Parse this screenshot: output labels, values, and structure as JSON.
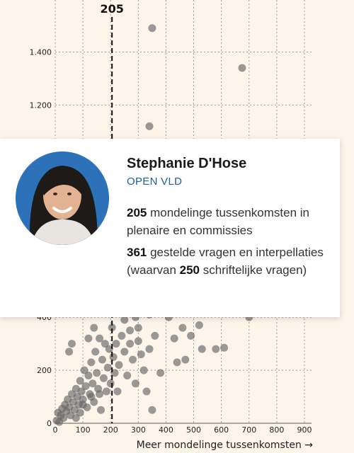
{
  "chart_data": {
    "type": "scatter",
    "xlabel": "Meer mondelinge tussenkomsten →",
    "ylabel": "",
    "xlim": [
      0,
      900
    ],
    "ylim": [
      0,
      1500
    ],
    "x_ticks": [
      "0",
      "100",
      "200",
      "300",
      "400",
      "500",
      "600",
      "700",
      "800",
      "900"
    ],
    "y_ticks": [
      {
        "value": 0,
        "label": "0"
      },
      {
        "value": 200,
        "label": "200"
      },
      {
        "value": 400,
        "label": "400"
      },
      {
        "value": 1200,
        "label": "1.200"
      },
      {
        "value": 1400,
        "label": "1.400"
      }
    ],
    "grid": true,
    "marker": {
      "x": 205,
      "label": "205"
    },
    "point_color": "#666666",
    "points": [
      [
        350,
        1490
      ],
      [
        675,
        1340
      ],
      [
        340,
        1120
      ],
      [
        240,
        420
      ],
      [
        290,
        400
      ],
      [
        340,
        410
      ],
      [
        700,
        400
      ],
      [
        5,
        10
      ],
      [
        10,
        40
      ],
      [
        15,
        5
      ],
      [
        20,
        30
      ],
      [
        25,
        55
      ],
      [
        30,
        20
      ],
      [
        35,
        70
      ],
      [
        40,
        45
      ],
      [
        45,
        90
      ],
      [
        50,
        60
      ],
      [
        55,
        30
      ],
      [
        60,
        110
      ],
      [
        65,
        80
      ],
      [
        70,
        50
      ],
      [
        75,
        130
      ],
      [
        80,
        100
      ],
      [
        85,
        70
      ],
      [
        90,
        160
      ],
      [
        95,
        120
      ],
      [
        100,
        90
      ],
      [
        105,
        200
      ],
      [
        110,
        140
      ],
      [
        115,
        60
      ],
      [
        120,
        180
      ],
      [
        125,
        110
      ],
      [
        130,
        230
      ],
      [
        135,
        150
      ],
      [
        140,
        80
      ],
      [
        145,
        270
      ],
      [
        150,
        190
      ],
      [
        155,
        130
      ],
      [
        160,
        320
      ],
      [
        165,
        50
      ],
      [
        170,
        240
      ],
      [
        175,
        170
      ],
      [
        180,
        300
      ],
      [
        185,
        120
      ],
      [
        190,
        210
      ],
      [
        195,
        280
      ],
      [
        200,
        150
      ],
      [
        205,
        361
      ],
      [
        210,
        250
      ],
      [
        215,
        190
      ],
      [
        220,
        300
      ],
      [
        225,
        120
      ],
      [
        230,
        220
      ],
      [
        240,
        330
      ],
      [
        250,
        270
      ],
      [
        260,
        180
      ],
      [
        270,
        350
      ],
      [
        280,
        240
      ],
      [
        290,
        150
      ],
      [
        300,
        310
      ],
      [
        310,
        260
      ],
      [
        320,
        200
      ],
      [
        330,
        120
      ],
      [
        340,
        280
      ],
      [
        350,
        50
      ],
      [
        360,
        330
      ],
      [
        380,
        190
      ],
      [
        410,
        400
      ],
      [
        430,
        320
      ],
      [
        440,
        230
      ],
      [
        460,
        360
      ],
      [
        470,
        240
      ],
      [
        490,
        330
      ],
      [
        520,
        370
      ],
      [
        530,
        280
      ],
      [
        580,
        280
      ],
      [
        610,
        285
      ],
      [
        50,
        270
      ],
      [
        60,
        300
      ],
      [
        120,
        320
      ],
      [
        140,
        360
      ],
      [
        100,
        70
      ],
      [
        90,
        40
      ],
      [
        75,
        20
      ],
      [
        130,
        100
      ],
      [
        160,
        110
      ],
      [
        250,
        390
      ],
      [
        270,
        300
      ],
      [
        300,
        360
      ]
    ]
  },
  "card": {
    "name": "Stephanie D'Hose",
    "party": "OPEN VLD",
    "stat1_number": "205",
    "stat1_text": " mondelinge tussenkomsten in plenaire en commissies",
    "stat2_number": "361",
    "stat2_text_a": " gestelde vragen en interpellaties (waarvan ",
    "stat2_number_b": "250",
    "stat2_text_b": " schriftelijke vragen)"
  }
}
